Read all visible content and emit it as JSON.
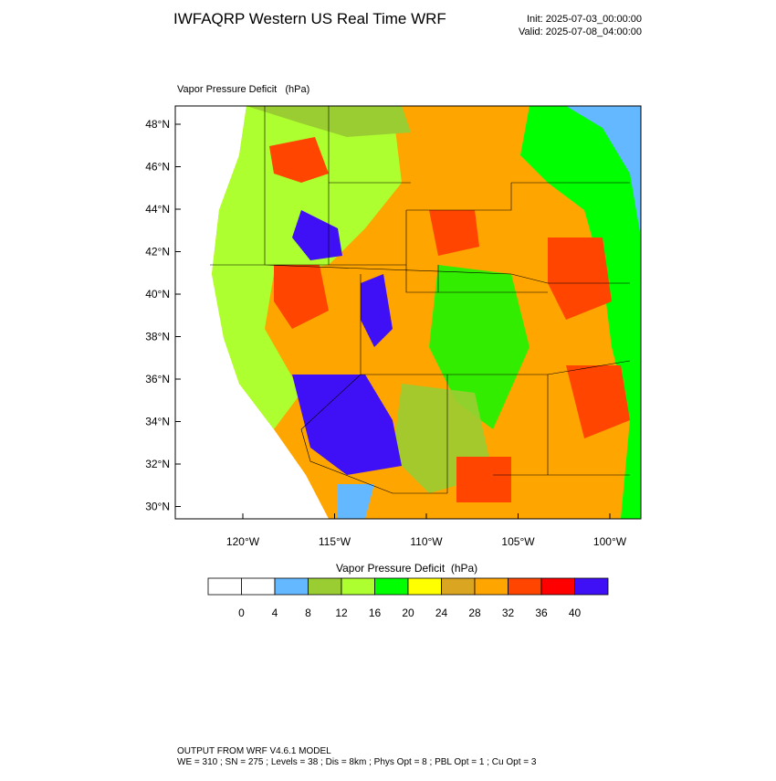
{
  "header": {
    "title": "IWFAQRP Western US Real Time WRF",
    "init": "Init: 2025-07-03_00:00:00",
    "valid": "Valid: 2025-07-08_04:00:00"
  },
  "map": {
    "label": "Vapor Pressure Deficit   (hPa)",
    "lat_labels": [
      "48°N",
      "46°N",
      "44°N",
      "42°N",
      "40°N",
      "38°N",
      "36°N",
      "34°N",
      "32°N",
      "30°N"
    ],
    "lon_labels": [
      "120°W",
      "115°W",
      "110°W",
      "105°W",
      "100°W"
    ]
  },
  "colorbar": {
    "title": "Vapor Pressure Deficit  (hPa)",
    "colors": [
      "#ffffff",
      "#ffffff",
      "#63b8ff",
      "#9acd32",
      "#adff2f",
      "#00ff00",
      "#ffff00",
      "#daa520",
      "#ffa500",
      "#ff4500",
      "#ff0000",
      "#3f10f5"
    ],
    "labels": [
      0,
      4,
      8,
      12,
      16,
      20,
      24,
      28,
      32,
      36,
      40
    ]
  },
  "footer": {
    "line1": "OUTPUT FROM WRF V4.6.1 MODEL",
    "line2": "WE = 310 ; SN = 275 ; Levels = 38 ; Dis = 8km ; Phys Opt = 8 ; PBL Opt = 1 ; Cu Opt = 3"
  }
}
